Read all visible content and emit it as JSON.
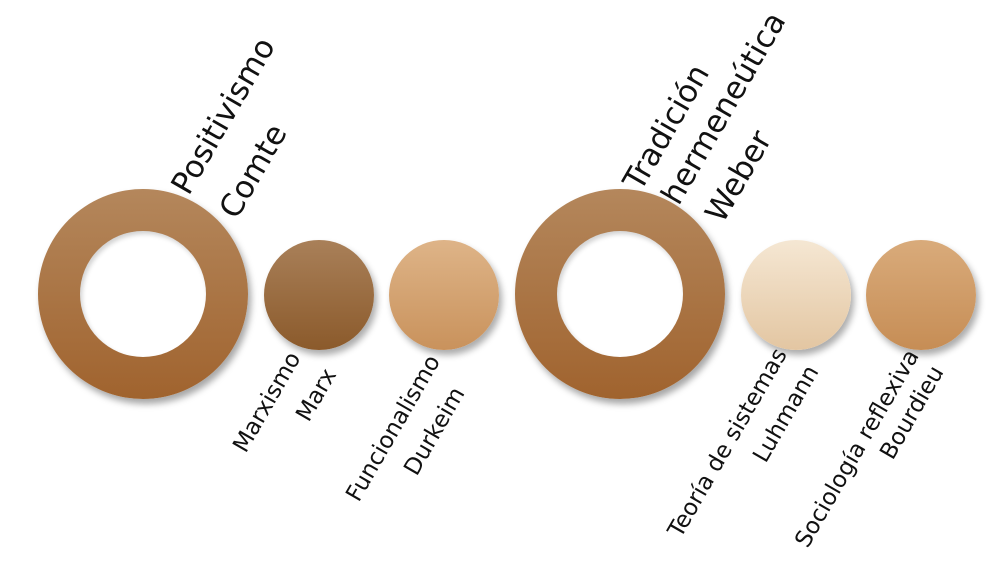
{
  "nodes": [
    {
      "id": "positivismo",
      "school": "Positivismo",
      "author": "Comte",
      "color_top": "#b4875c",
      "color_bottom": "#a0632e"
    },
    {
      "id": "marxismo",
      "school": "Marxismo",
      "author": "Marx",
      "color_top": "#a98059",
      "color_bottom": "#8b5a2b"
    },
    {
      "id": "funcionalismo",
      "school": "Funcionalismo",
      "author": "Durkeim",
      "color_top": "#deb488",
      "color_bottom": "#c9925c"
    },
    {
      "id": "hermeneutica",
      "school": "Tradición hermeneútica",
      "school_line1": "Tradición",
      "school_line2": "hermeneútica",
      "author": "Weber",
      "color_top": "#b4875c",
      "color_bottom": "#a0632e"
    },
    {
      "id": "sistemas",
      "school": "Teoría de sistemas",
      "author": "Luhmann",
      "color_top": "#f5e7d3",
      "color_bottom": "#e3c6a2"
    },
    {
      "id": "reflexiva",
      "school": "Sociología reflexiva",
      "author": "Bourdieu",
      "color_top": "#d9ab7b",
      "color_bottom": "#c68d55"
    }
  ],
  "label_color": "#111111",
  "background": "#ffffff"
}
